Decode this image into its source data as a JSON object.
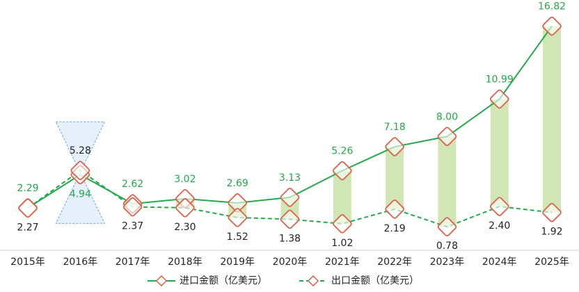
{
  "chart_data": {
    "type": "line",
    "categories": [
      "2015年",
      "2016年",
      "2017年",
      "2018年",
      "2019年",
      "2020年",
      "2021年",
      "2022年",
      "2023年",
      "2024年",
      "2025年"
    ],
    "series": [
      {
        "name": "进口金额（亿美元）",
        "color": "#22a94a",
        "dash": false,
        "values": [
          2.29,
          4.94,
          2.62,
          3.02,
          2.69,
          3.13,
          5.26,
          7.18,
          8.0,
          10.99,
          16.82
        ],
        "value_labels": [
          "2.29",
          "4.94",
          "2.62",
          "3.02",
          "2.69",
          "3.13",
          "5.26",
          "7.18",
          "8.00",
          "10.99",
          "16.82"
        ]
      },
      {
        "name": "出口金额（亿美元）",
        "color": "#22a94a",
        "dash": true,
        "values": [
          2.27,
          5.28,
          2.37,
          2.3,
          1.52,
          1.38,
          1.02,
          2.19,
          0.78,
          2.4,
          1.92
        ],
        "value_labels": [
          "2.27",
          "5.28",
          "2.37",
          "2.30",
          "1.52",
          "1.38",
          "1.02",
          "2.19",
          "0.78",
          "2.40",
          "1.92"
        ]
      }
    ],
    "ylim": [
      -1.1,
      17.8
    ],
    "legend": "bottom"
  }
}
